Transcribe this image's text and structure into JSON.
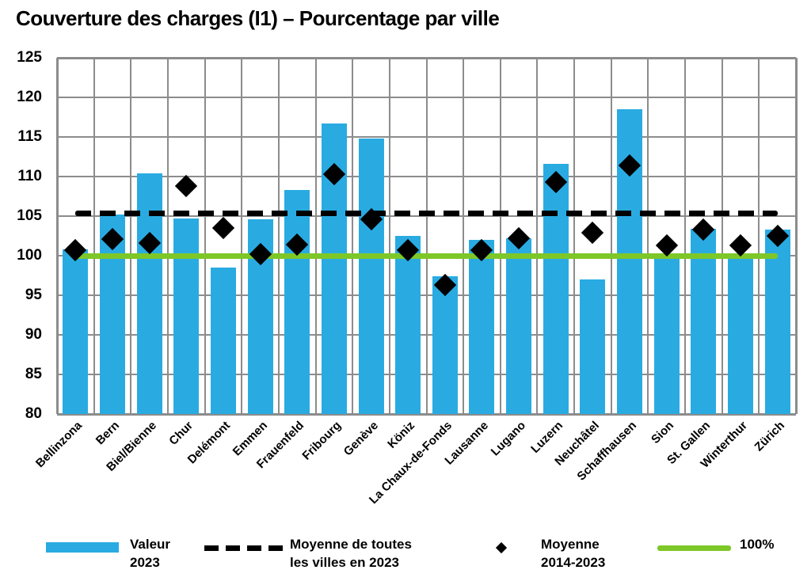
{
  "title": "Couverture des charges (I1) – Pourcentage par ville",
  "chart_data": {
    "type": "bar",
    "title": "Couverture des charges (I1) – Pourcentage par ville",
    "categories": [
      "Bellinzona",
      "Bern",
      "Biel/Bienne",
      "Chur",
      "Delémont",
      "Emmen",
      "Frauenfeld",
      "Fribourg",
      "Genève",
      "Köniz",
      "La Chaux-de-Fonds",
      "Lausanne",
      "Lugano",
      "Luzern",
      "Neuchâtel",
      "Schaffhausen",
      "Sion",
      "St. Gallen",
      "Winterthur",
      "Zürich"
    ],
    "series": [
      {
        "name": "Valeur 2023",
        "type": "bar",
        "color": "#29abe2",
        "values": [
          100.8,
          105.2,
          110.4,
          104.7,
          98.5,
          104.6,
          108.3,
          116.7,
          114.8,
          102.5,
          97.4,
          102.0,
          102.2,
          111.6,
          97.0,
          118.5,
          100.1,
          103.4,
          100.1,
          103.3
        ]
      },
      {
        "name": "Moyenne 2014-2023",
        "type": "scatter",
        "marker": "diamond",
        "color": "#000000",
        "values": [
          100.7,
          102.1,
          101.6,
          108.8,
          103.5,
          100.2,
          101.4,
          110.3,
          104.6,
          100.7,
          96.3,
          100.7,
          102.2,
          109.3,
          102.9,
          111.4,
          101.3,
          103.3,
          101.3,
          102.5
        ]
      },
      {
        "name": "Moyenne de toutes les villes en 2023",
        "type": "reference-line",
        "style": "dashed",
        "color": "#000000",
        "value": 105.4
      },
      {
        "name": "100%",
        "type": "reference-line",
        "style": "solid",
        "color": "#7ec728",
        "value": 100
      }
    ],
    "xlabel": "",
    "ylabel": "",
    "ylim": [
      80,
      125
    ],
    "ytick_step": 5,
    "grid": true,
    "gridline_color": "#8c8c8c",
    "legend_position": "bottom"
  },
  "legend": {
    "items": [
      {
        "swatch": "bar",
        "color": "#29abe2",
        "label": "Valeur\n2023"
      },
      {
        "swatch": "dashed-line",
        "color": "#000000",
        "label": "Moyenne de toutes\nles villes en 2023"
      },
      {
        "swatch": "diamond",
        "color": "#000000",
        "label": "Moyenne\n2014-2023"
      },
      {
        "swatch": "solid-line",
        "color": "#7ec728",
        "label": "100%"
      }
    ]
  }
}
